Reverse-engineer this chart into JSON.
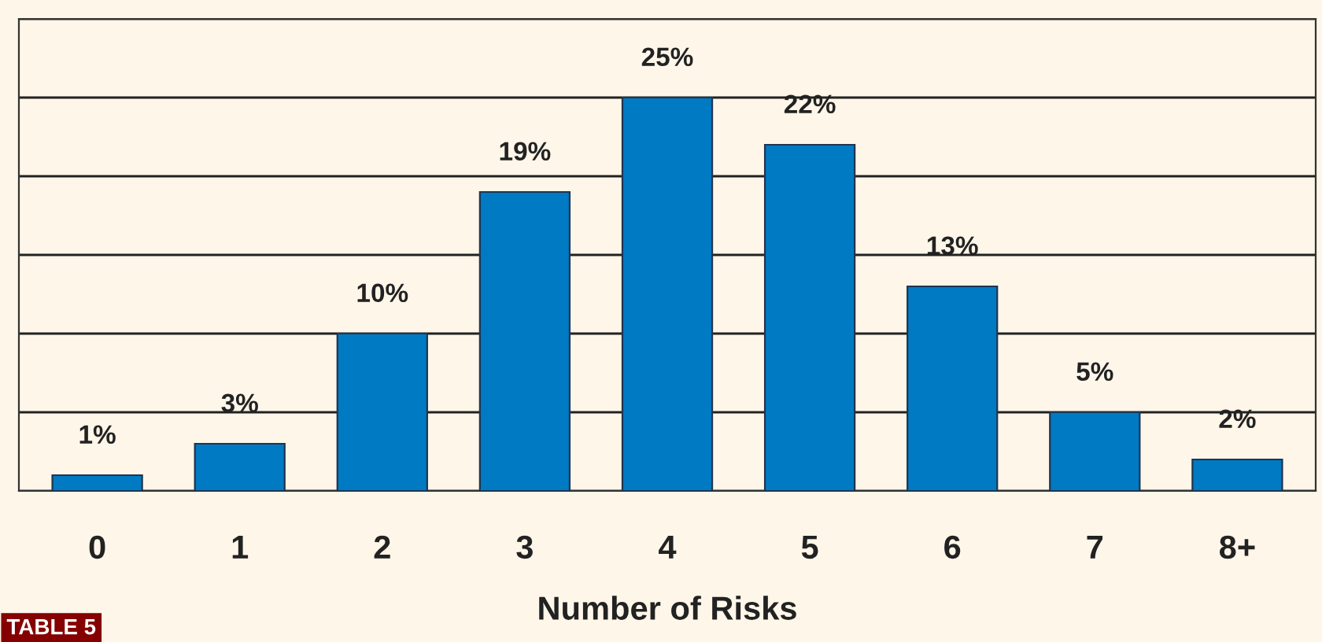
{
  "chart_data": {
    "type": "bar",
    "xlabel": "Number of Risks",
    "categories": [
      "0",
      "1",
      "2",
      "3",
      "4",
      "5",
      "6",
      "7",
      "8+"
    ],
    "values": [
      1,
      3,
      10,
      19,
      25,
      22,
      13,
      5,
      2
    ],
    "value_labels": [
      "1%",
      "3%",
      "10%",
      "19%",
      "25%",
      "22%",
      "13%",
      "5%",
      "2%"
    ],
    "color": "#007ac2",
    "ylim": [
      0,
      30
    ],
    "yticks": [
      {
        "value": 0,
        "label": null
      },
      {
        "value": 5,
        "label": null
      },
      {
        "value": 10,
        "label": null
      },
      {
        "value": 15,
        "label": null
      },
      {
        "value": 20,
        "label": null
      },
      {
        "value": 25,
        "label": null
      },
      {
        "value": 30,
        "label": null
      }
    ],
    "grid": "y",
    "tick_labels": "x",
    "annotations": [
      "TABLE 5"
    ]
  }
}
